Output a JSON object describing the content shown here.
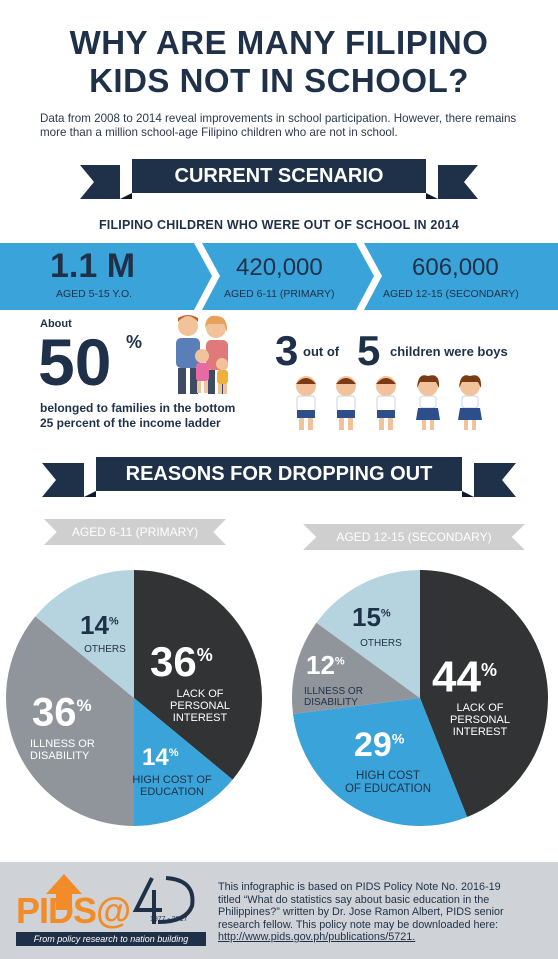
{
  "title": {
    "line1": "WHY ARE MANY FILIPINO",
    "line2": "KIDS NOT IN SCHOOL?"
  },
  "intro": "Data from 2008 to 2014 reveal improvements in school participation. However, there remains more than a million school-age Filipino children who are not in school.",
  "section1": {
    "ribbon": "CURRENT SCENARIO",
    "subtitle": "FILIPINO CHILDREN WHO WERE OUT OF SCHOOL IN 2014",
    "stats": [
      {
        "value": "1.1 M",
        "label": "AGED 5-15 Y.O."
      },
      {
        "value": "420,000",
        "label": "AGED 6-11 (PRIMARY)"
      },
      {
        "value": "606,000",
        "label": "AGED 12-15 (SECONDARY)"
      }
    ],
    "income": {
      "about": "About",
      "value": "50",
      "pct": "%",
      "text1": "belonged to families in the bottom",
      "text2": "25 percent of the income ladder"
    },
    "boys": {
      "n1": "3",
      "mid": "out of",
      "n2": "5",
      "tail": "children were boys"
    }
  },
  "section2": {
    "ribbon": "REASONS FOR DROPPING OUT",
    "primary": {
      "tag": "AGED 6-11 (PRIMARY)",
      "slices": [
        {
          "label": "LACK OF PERSONAL INTEREST",
          "value": 36,
          "color": "#323335"
        },
        {
          "label": "HIGH COST OF EDUCATION",
          "value": 14,
          "color": "#3aa3d9"
        },
        {
          "label": "ILLNESS OR DISABILITY",
          "value": 36,
          "color": "#8f959b"
        },
        {
          "label": "OTHERS",
          "value": 14,
          "color": "#b6d4df"
        }
      ],
      "text": {
        "lack_v": "36",
        "lack_l1": "LACK OF",
        "lack_l2": "PERSONAL",
        "lack_l3": "INTEREST",
        "cost_v": "14",
        "cost_l1": "HIGH COST OF",
        "cost_l2": "EDUCATION",
        "ill_v": "36",
        "ill_l1": "ILLNESS OR",
        "ill_l2": "DISABILITY",
        "oth_v": "14",
        "oth_l": "OTHERS",
        "pct": "%"
      }
    },
    "secondary": {
      "tag": "AGED 12-15 (SECONDARY)",
      "slices": [
        {
          "label": "LACK OF PERSONAL INTEREST",
          "value": 44,
          "color": "#323335"
        },
        {
          "label": "HIGH COST OF EDUCATION",
          "value": 29,
          "color": "#3aa3d9"
        },
        {
          "label": "ILLNESS OR DISABILITY",
          "value": 12,
          "color": "#8f959b"
        },
        {
          "label": "OTHERS",
          "value": 15,
          "color": "#b6d4df"
        }
      ],
      "text": {
        "lack_v": "44",
        "lack_l1": "LACK OF",
        "lack_l2": "PERSONAL",
        "lack_l3": "INTEREST",
        "cost_v": "29",
        "cost_l1": "HIGH COST",
        "cost_l2": "OF EDUCATION",
        "ill_v": "12",
        "ill_l1": "ILLNESS OR",
        "ill_l2": "DISABILITY",
        "oth_v": "15",
        "oth_l": "OTHERS",
        "pct": "%"
      }
    }
  },
  "footer": {
    "logo": "PIDS@",
    "years": "1977 - 2017",
    "tagline": "From policy research to nation building",
    "note1": "This infographic is based on PIDS Policy Note No. 2016-19",
    "note2": "titled “What do statistics say about basic education in the",
    "note3": "Philippines?” written by Dr. Jose Ramon Albert, PIDS senior",
    "note4": "research fellow. This policy note may be downloaded here:",
    "link": "http://www.pids.gov.ph/publications/5721."
  },
  "colors": {
    "navy": "#1f3148",
    "blue": "#3aa3d9",
    "dark": "#323335",
    "grey": "#8f959b",
    "light": "#b6d4df"
  }
}
